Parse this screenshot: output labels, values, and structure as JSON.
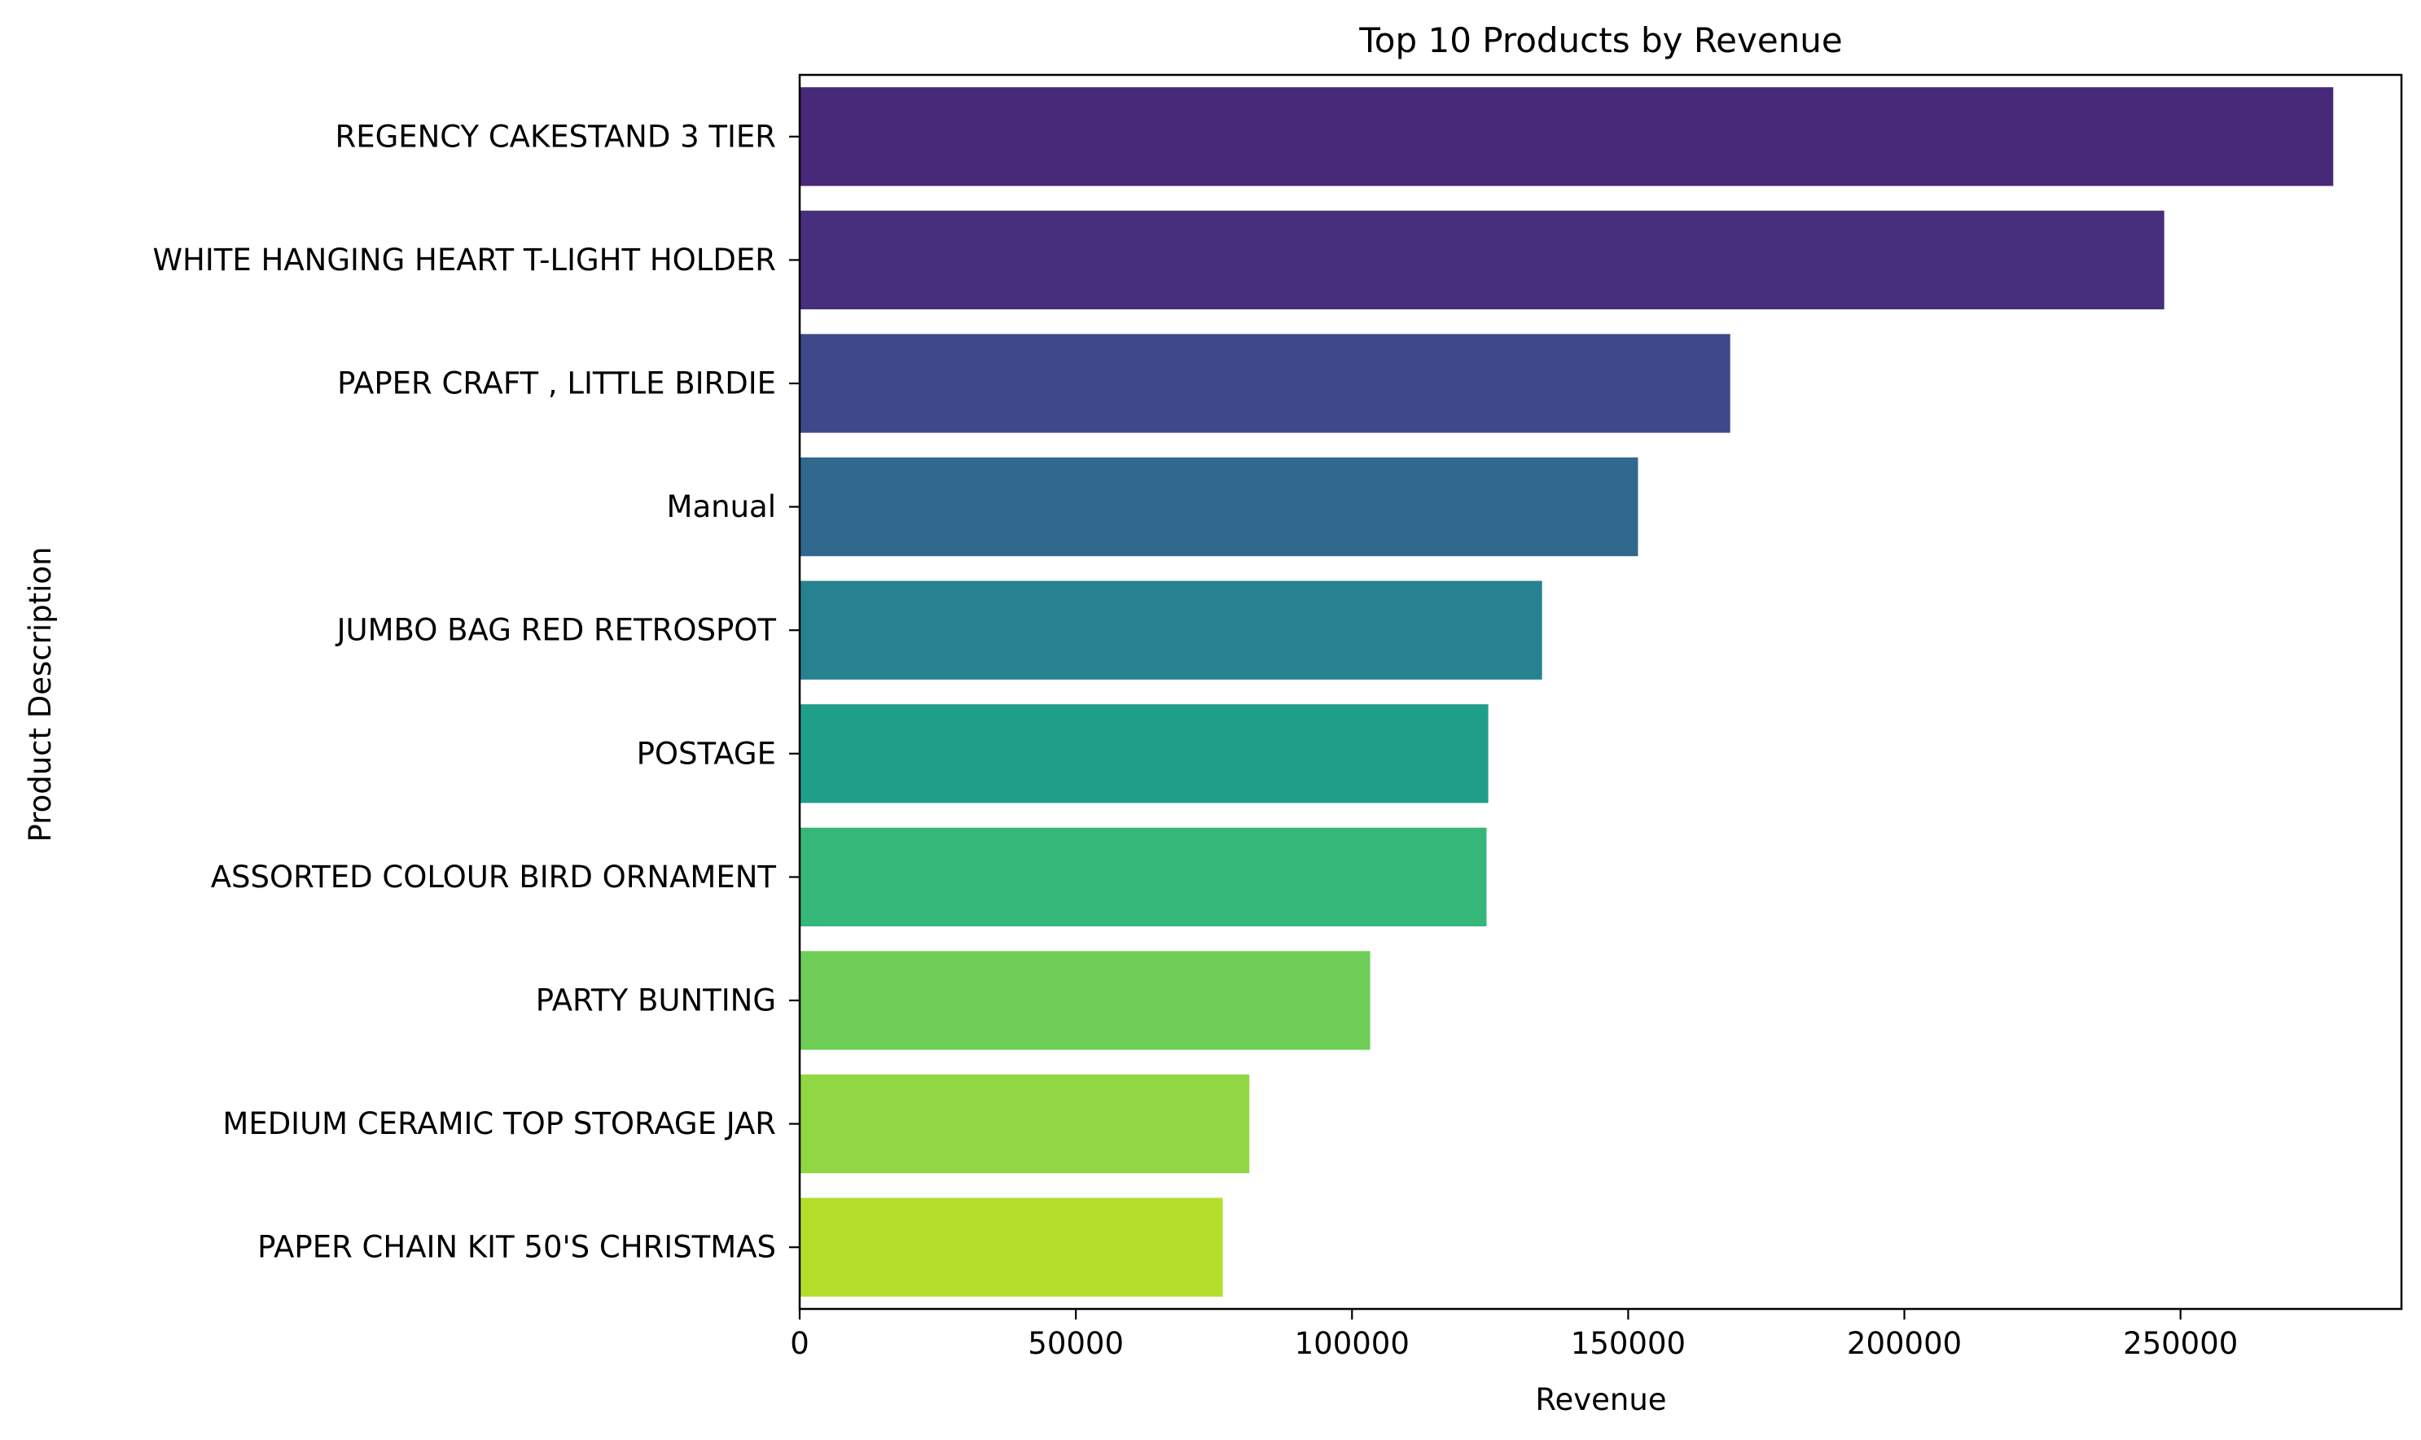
{
  "chart_data": {
    "type": "bar",
    "orientation": "horizontal",
    "title": "Top 10 Products by Revenue",
    "xlabel": "Revenue",
    "ylabel": "Product Description",
    "categories": [
      "REGENCY CAKESTAND 3 TIER",
      "WHITE HANGING HEART T-LIGHT HOLDER",
      "PAPER CRAFT , LITTLE BIRDIE",
      "Manual",
      "JUMBO BAG RED RETROSPOT",
      "POSTAGE",
      "ASSORTED COLOUR BIRD ORNAMENT",
      "PARTY BUNTING",
      "MEDIUM CERAMIC TOP STORAGE JAR",
      "PAPER CHAIN KIT 50'S CHRISTMAS "
    ],
    "values": [
      277656,
      247049,
      168470,
      151778,
      134407,
      124670,
      124351,
      103284,
      81417,
      76599
    ],
    "colors": [
      "#482878",
      "#472f7d",
      "#3e4989",
      "#31688e",
      "#26828e",
      "#1f9e89",
      "#35b779",
      "#6ece58",
      "#90d743",
      "#b5de2b"
    ],
    "xlim": [
      0,
      290000
    ],
    "xticks": [
      0,
      50000,
      100000,
      150000,
      200000,
      250000
    ],
    "xtick_labels": [
      "0",
      "50000",
      "100000",
      "150000",
      "200000",
      "250000"
    ],
    "grid": false,
    "legend": "none"
  }
}
